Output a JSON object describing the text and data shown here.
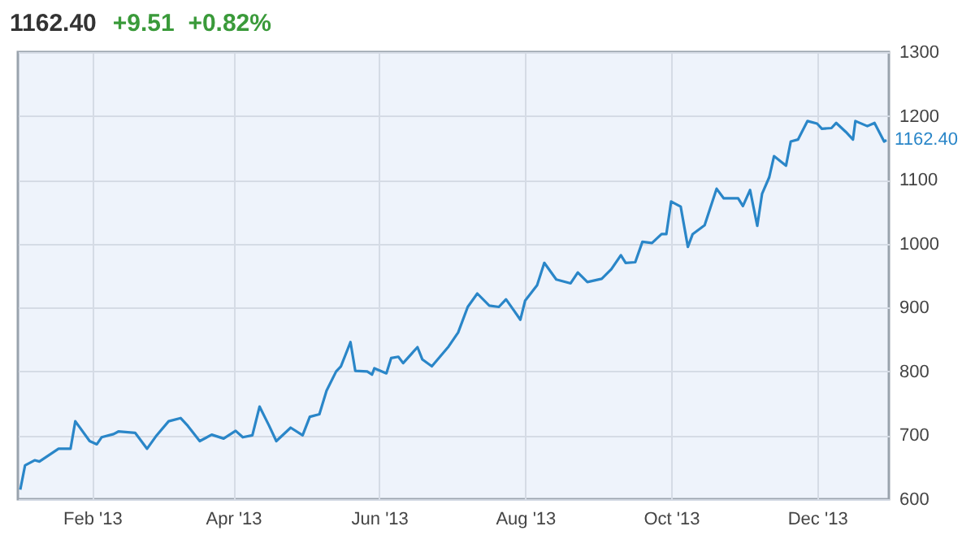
{
  "chart_data": {
    "type": "line",
    "title": "1162.40",
    "subtitle": "+9.51  +0.82%",
    "x": [
      "2013-01-02",
      "2013-01-04",
      "2013-01-08",
      "2013-01-10",
      "2013-01-18",
      "2013-01-23",
      "2013-01-25",
      "2013-01-31",
      "2013-02-03",
      "2013-02-05",
      "2013-02-10",
      "2013-02-12",
      "2013-02-19",
      "2013-02-24",
      "2013-02-28",
      "2013-03-05",
      "2013-03-10",
      "2013-03-13",
      "2013-03-18",
      "2013-03-23",
      "2013-03-28",
      "2013-04-02",
      "2013-04-05",
      "2013-04-09",
      "2013-04-12",
      "2013-04-16",
      "2013-04-19",
      "2013-04-25",
      "2013-04-30",
      "2013-05-03",
      "2013-05-07",
      "2013-05-10",
      "2013-05-14",
      "2013-05-16",
      "2013-05-20",
      "2013-05-22",
      "2013-05-27",
      "2013-05-29",
      "2013-05-30",
      "2013-06-04",
      "2013-06-06",
      "2013-06-09",
      "2013-06-11",
      "2013-06-17",
      "2013-06-19",
      "2013-06-23",
      "2013-06-30",
      "2013-07-04",
      "2013-07-08",
      "2013-07-12",
      "2013-07-17",
      "2013-07-21",
      "2013-07-24",
      "2013-07-27",
      "2013-07-30",
      "2013-08-01",
      "2013-08-06",
      "2013-08-09",
      "2013-08-14",
      "2013-08-20",
      "2013-08-23",
      "2013-08-27",
      "2013-09-02",
      "2013-09-06",
      "2013-09-10",
      "2013-09-12",
      "2013-09-16",
      "2013-09-19",
      "2013-09-23",
      "2013-09-27",
      "2013-09-29",
      "2013-10-01",
      "2013-10-05",
      "2013-10-08",
      "2013-10-10",
      "2013-10-15",
      "2013-10-20",
      "2013-10-23",
      "2013-10-29",
      "2013-10-31",
      "2013-11-03",
      "2013-11-06",
      "2013-11-08",
      "2013-11-11",
      "2013-11-13",
      "2013-11-18",
      "2013-11-20",
      "2013-11-23",
      "2013-11-27",
      "2013-12-01",
      "2013-12-03",
      "2013-12-07",
      "2013-12-09",
      "2013-12-13",
      "2013-12-16",
      "2013-12-17",
      "2013-12-22",
      "2013-12-25",
      "2013-12-29",
      "2013-12-30"
    ],
    "series": [
      {
        "color": "#2a86c8",
        "values": [
          615,
          653,
          661,
          659,
          679,
          679,
          722,
          691,
          686,
          697,
          702,
          706,
          704,
          679,
          700,
          722,
          727,
          715,
          691,
          701,
          695,
          707,
          697,
          700,
          745,
          715,
          691,
          712,
          700,
          729,
          733,
          770,
          800,
          808,
          846,
          801,
          800,
          795,
          805,
          797,
          821,
          823,
          813,
          838,
          819,
          808,
          839,
          861,
          901,
          922,
          903,
          901,
          913,
          897,
          881,
          911,
          935,
          970,
          944,
          938,
          955,
          940,
          945,
          960,
          982,
          970,
          971,
          1003,
          1001,
          1015,
          1015,
          1066,
          1058,
          995,
          1015,
          1029,
          1086,
          1071,
          1071,
          1059,
          1084,
          1028,
          1078,
          1104,
          1137,
          1122,
          1160,
          1163,
          1192,
          1188,
          1180,
          1181,
          1189,
          1175,
          1163,
          1192,
          1184,
          1189,
          1160,
          1162
        ]
      }
    ],
    "xlim": [
      "2013-01-01",
      "2013-12-31"
    ],
    "xticks": [
      {
        "value": "2013-02-01",
        "label": "Feb '13"
      },
      {
        "value": "2013-04-01",
        "label": "Apr '13"
      },
      {
        "value": "2013-06-01",
        "label": "Jun '13"
      },
      {
        "value": "2013-08-01",
        "label": "Aug '13"
      },
      {
        "value": "2013-10-01",
        "label": "Oct '13"
      },
      {
        "value": "2013-12-01",
        "label": "Dec '13"
      }
    ],
    "ylim": [
      600,
      1300
    ],
    "yticks": [
      600,
      700,
      800,
      900,
      1000,
      1100,
      1200,
      1300
    ],
    "annotations": [
      {
        "text": "1162.40",
        "x": "2013-12-30",
        "y": 1162.4
      }
    ],
    "grid": true
  }
}
